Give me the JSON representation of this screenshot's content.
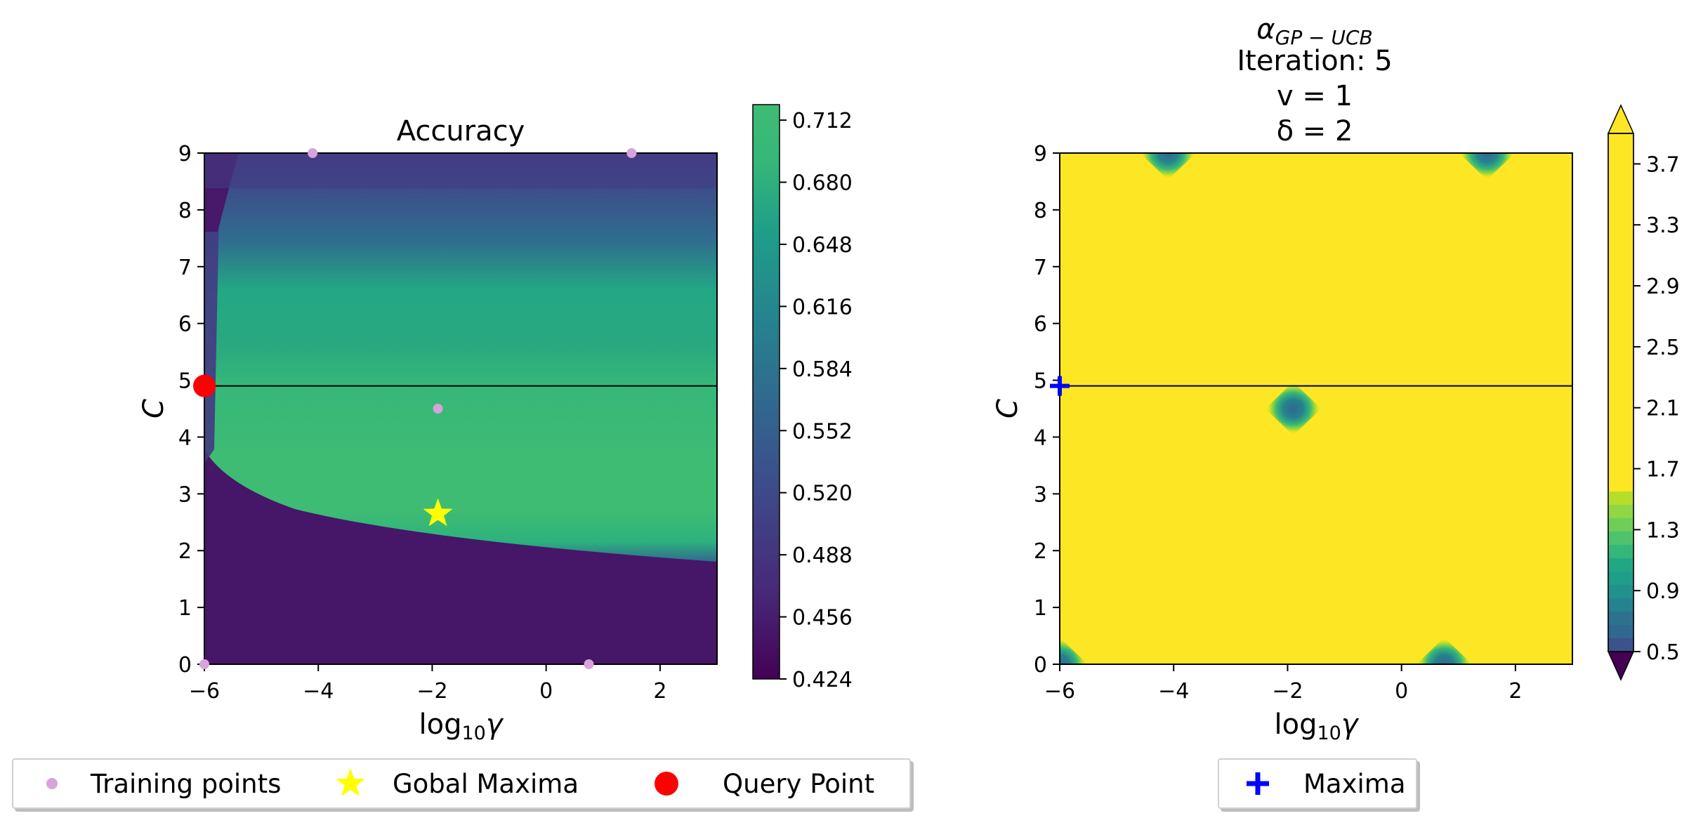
{
  "chart_data": [
    {
      "type": "heatmap",
      "title": "Accuracy",
      "xlabel": "log10γ",
      "xlabel_main": "log",
      "xlabel_sub": "10",
      "xlabel_var": "γ",
      "ylabel": "C",
      "xlim": [
        -6,
        3
      ],
      "ylim": [
        0,
        9
      ],
      "xticks": [
        "−6",
        "−4",
        "−2",
        "0",
        "2"
      ],
      "xtick_values": [
        -6,
        -4,
        -2,
        0,
        2
      ],
      "yticks": [
        "0",
        "1",
        "2",
        "3",
        "4",
        "5",
        "6",
        "7",
        "8",
        "9"
      ],
      "colorbar_ticks": [
        "0.424",
        "0.456",
        "0.488",
        "0.520",
        "0.552",
        "0.584",
        "0.616",
        "0.648",
        "0.680",
        "0.712"
      ],
      "colorbar_range": [
        0.424,
        0.72
      ],
      "colormap": "viridis",
      "horizontal_line_y": 4.9,
      "training_points": [
        {
          "x": -4.1,
          "y": 9.0
        },
        {
          "x": 1.5,
          "y": 9.0
        },
        {
          "x": -1.9,
          "y": 4.5
        },
        {
          "x": -6.0,
          "y": 0.0
        },
        {
          "x": 0.75,
          "y": 0.0
        }
      ],
      "global_maxima": {
        "x": -1.9,
        "y": 2.65
      },
      "query_point": {
        "x": -6.0,
        "y": 4.9
      },
      "legend": {
        "training": "Training points",
        "maxima": "Gobal Maxima",
        "query": "Query Point"
      },
      "colors": {
        "training": "#d8a2dc",
        "maxima": "#ffff00",
        "query": "#ff0000"
      }
    },
    {
      "type": "heatmap",
      "title_symbol": "α",
      "title_sub": "GP − UCB",
      "title_line2": "Iteration: 5",
      "title_line3": "v = 1",
      "title_line4": "δ = 2",
      "xlabel": "log10γ",
      "ylabel": "C",
      "xlim": [
        -6,
        3
      ],
      "ylim": [
        0,
        9
      ],
      "xticks": [
        "−6",
        "−4",
        "−2",
        "0",
        "2"
      ],
      "yticks": [
        "0",
        "1",
        "2",
        "3",
        "4",
        "5",
        "6",
        "7",
        "8",
        "9"
      ],
      "colorbar_ticks": [
        "0.5",
        "0.9",
        "1.3",
        "1.7",
        "2.1",
        "2.5",
        "2.9",
        "3.3",
        "3.7"
      ],
      "colorbar_range": [
        0.5,
        3.9
      ],
      "colormap": "viridis",
      "horizontal_line_y": 4.9,
      "low_regions": [
        {
          "x": -4.1,
          "y": 9.0
        },
        {
          "x": 1.5,
          "y": 9.0
        },
        {
          "x": -1.9,
          "y": 4.5
        },
        {
          "x": -6.0,
          "y": 0.0
        },
        {
          "x": 0.75,
          "y": 0.0
        }
      ],
      "maxima_point": {
        "x": -6.0,
        "y": 4.9
      },
      "legend": {
        "maxima": "Maxima"
      },
      "colors": {
        "maxima": "#0000ff",
        "plateau": "#fde725"
      }
    }
  ]
}
